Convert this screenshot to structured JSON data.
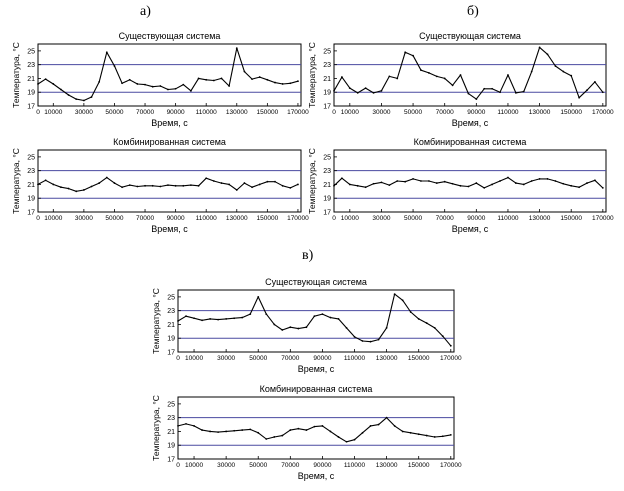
{
  "labels": {
    "a": "а)",
    "b": "б)",
    "c": "в)"
  },
  "colors": {
    "curve": "#000000",
    "limit": "#4a4aa0",
    "axis": "#000000"
  },
  "chart_data": [
    {
      "id": "a_top",
      "type": "line",
      "title": "Существующая система",
      "xlabel": "Время, с",
      "ylabel": "Температура, °С",
      "xlim": [
        0,
        172000
      ],
      "ylim": [
        17,
        26
      ],
      "xticks": [
        0,
        10000,
        30000,
        50000,
        70000,
        90000,
        110000,
        130000,
        150000,
        170000
      ],
      "yticks": [
        17,
        19,
        21,
        23,
        25
      ],
      "hlines": [
        23,
        19
      ],
      "x": [
        0,
        5000,
        10000,
        15000,
        20000,
        25000,
        30000,
        35000,
        40000,
        45000,
        50000,
        55000,
        60000,
        65000,
        70000,
        75000,
        80000,
        85000,
        90000,
        95000,
        100000,
        105000,
        110000,
        115000,
        120000,
        125000,
        130000,
        135000,
        140000,
        145000,
        150000,
        155000,
        160000,
        165000,
        170000
      ],
      "y": [
        20.2,
        20.9,
        20.2,
        19.4,
        18.6,
        18.0,
        17.8,
        18.3,
        20.5,
        24.8,
        22.8,
        20.3,
        20.8,
        20.2,
        20.1,
        19.8,
        19.9,
        19.4,
        19.5,
        20.1,
        19.2,
        21.0,
        20.8,
        20.7,
        21.0,
        19.9,
        25.4,
        22.0,
        20.9,
        21.2,
        20.8,
        20.4,
        20.2,
        20.3,
        20.6
      ]
    },
    {
      "id": "b_top",
      "type": "line",
      "title": "Существующая система",
      "xlabel": "Время, с",
      "ylabel": "Температура, °С",
      "xlim": [
        0,
        172000
      ],
      "ylim": [
        17,
        26
      ],
      "xticks": [
        0,
        10000,
        30000,
        50000,
        70000,
        90000,
        110000,
        130000,
        150000,
        170000
      ],
      "yticks": [
        17,
        19,
        21,
        23,
        25
      ],
      "hlines": [
        23,
        19
      ],
      "x": [
        0,
        5000,
        10000,
        15000,
        20000,
        25000,
        30000,
        35000,
        40000,
        45000,
        50000,
        55000,
        60000,
        65000,
        70000,
        75000,
        80000,
        85000,
        90000,
        95000,
        100000,
        105000,
        110000,
        115000,
        120000,
        125000,
        130000,
        135000,
        140000,
        145000,
        150000,
        155000,
        160000,
        165000,
        170000
      ],
      "y": [
        19.2,
        21.2,
        19.6,
        18.9,
        19.6,
        18.9,
        19.2,
        21.3,
        21.0,
        24.8,
        24.3,
        22.2,
        21.8,
        21.3,
        21.0,
        20.0,
        21.5,
        18.8,
        18.0,
        19.5,
        19.5,
        19.0,
        21.5,
        18.9,
        19.1,
        22.0,
        25.5,
        24.5,
        22.8,
        22.0,
        21.4,
        18.2,
        19.3,
        20.5,
        19.0
      ]
    },
    {
      "id": "a_bottom",
      "type": "line",
      "title": "Комбинированная система",
      "xlabel": "Время, с",
      "ylabel": "Температура, °С",
      "xlim": [
        0,
        172000
      ],
      "ylim": [
        17,
        26
      ],
      "xticks": [
        0,
        10000,
        30000,
        50000,
        70000,
        90000,
        110000,
        130000,
        150000,
        170000
      ],
      "yticks": [
        17,
        19,
        21,
        23,
        25
      ],
      "hlines": [
        23,
        19
      ],
      "x": [
        0,
        5000,
        10000,
        15000,
        20000,
        25000,
        30000,
        35000,
        40000,
        45000,
        50000,
        55000,
        60000,
        65000,
        70000,
        75000,
        80000,
        85000,
        90000,
        95000,
        100000,
        105000,
        110000,
        115000,
        120000,
        125000,
        130000,
        135000,
        140000,
        145000,
        150000,
        155000,
        160000,
        165000,
        170000
      ],
      "y": [
        21.0,
        21.6,
        21.0,
        20.6,
        20.4,
        20.0,
        20.2,
        20.7,
        21.2,
        22.0,
        21.2,
        20.6,
        20.9,
        20.7,
        20.8,
        20.8,
        20.7,
        20.9,
        20.8,
        20.8,
        20.9,
        20.8,
        21.9,
        21.5,
        21.2,
        21.0,
        20.2,
        21.2,
        20.6,
        21.0,
        21.4,
        21.4,
        20.8,
        20.5,
        21.0
      ]
    },
    {
      "id": "b_bottom",
      "type": "line",
      "title": "Комбинированная система",
      "xlabel": "Время, с",
      "ylabel": "Температура, °С",
      "xlim": [
        0,
        172000
      ],
      "ylim": [
        17,
        26
      ],
      "xticks": [
        0,
        10000,
        30000,
        50000,
        70000,
        90000,
        110000,
        130000,
        150000,
        170000
      ],
      "yticks": [
        17,
        19,
        21,
        23,
        25
      ],
      "hlines": [
        23,
        19
      ],
      "x": [
        0,
        5000,
        10000,
        15000,
        20000,
        25000,
        30000,
        35000,
        40000,
        45000,
        50000,
        55000,
        60000,
        65000,
        70000,
        75000,
        80000,
        85000,
        90000,
        95000,
        100000,
        105000,
        110000,
        115000,
        120000,
        125000,
        130000,
        135000,
        140000,
        145000,
        150000,
        155000,
        160000,
        165000,
        170000
      ],
      "y": [
        20.8,
        21.9,
        21.0,
        20.8,
        20.6,
        21.1,
        21.3,
        20.9,
        21.5,
        21.4,
        21.8,
        21.5,
        21.5,
        21.2,
        21.4,
        21.1,
        20.8,
        20.7,
        21.2,
        20.5,
        21.0,
        21.5,
        22.0,
        21.2,
        21.0,
        21.5,
        21.8,
        21.8,
        21.5,
        21.1,
        20.8,
        20.6,
        21.2,
        21.6,
        20.5
      ]
    },
    {
      "id": "c_top",
      "type": "line",
      "title": "Существующая система",
      "xlabel": "Время, с",
      "ylabel": "Температура, °С",
      "xlim": [
        0,
        172000
      ],
      "ylim": [
        17,
        26
      ],
      "xticks": [
        0,
        10000,
        30000,
        50000,
        70000,
        90000,
        110000,
        130000,
        150000,
        170000
      ],
      "yticks": [
        17,
        19,
        21,
        23,
        25
      ],
      "hlines": [
        23,
        19
      ],
      "x": [
        0,
        5000,
        10000,
        15000,
        20000,
        25000,
        30000,
        35000,
        40000,
        45000,
        50000,
        55000,
        60000,
        65000,
        70000,
        75000,
        80000,
        85000,
        90000,
        95000,
        100000,
        105000,
        110000,
        115000,
        120000,
        125000,
        130000,
        135000,
        140000,
        145000,
        150000,
        155000,
        160000,
        165000,
        170000
      ],
      "y": [
        21.5,
        22.2,
        21.9,
        21.6,
        21.8,
        21.7,
        21.8,
        21.9,
        22.0,
        22.5,
        25.0,
        22.5,
        21.0,
        20.2,
        20.6,
        20.4,
        20.6,
        22.2,
        22.5,
        22.0,
        21.8,
        20.5,
        19.2,
        18.6,
        18.5,
        18.8,
        20.5,
        25.4,
        24.5,
        22.8,
        21.8,
        21.2,
        20.5,
        19.3,
        17.9
      ]
    },
    {
      "id": "c_bottom",
      "type": "line",
      "title": "Комбинированная система",
      "xlabel": "Время, с",
      "ylabel": "Температура, °С",
      "xlim": [
        0,
        172000
      ],
      "ylim": [
        17,
        26
      ],
      "xticks": [
        0,
        10000,
        30000,
        50000,
        70000,
        90000,
        110000,
        130000,
        150000,
        170000
      ],
      "yticks": [
        17,
        19,
        21,
        23,
        25
      ],
      "hlines": [
        23,
        19
      ],
      "x": [
        0,
        5000,
        10000,
        15000,
        20000,
        25000,
        30000,
        35000,
        40000,
        45000,
        50000,
        55000,
        60000,
        65000,
        70000,
        75000,
        80000,
        85000,
        90000,
        95000,
        100000,
        105000,
        110000,
        115000,
        120000,
        125000,
        130000,
        135000,
        140000,
        145000,
        150000,
        155000,
        160000,
        165000,
        170000
      ],
      "y": [
        21.8,
        22.1,
        21.8,
        21.2,
        21.0,
        20.9,
        21.0,
        21.1,
        21.2,
        21.3,
        20.8,
        19.9,
        20.2,
        20.4,
        21.2,
        21.4,
        21.2,
        21.7,
        21.8,
        21.0,
        20.2,
        19.5,
        19.8,
        20.8,
        21.8,
        22.0,
        23.0,
        21.8,
        21.0,
        20.8,
        20.6,
        20.4,
        20.2,
        20.3,
        20.5
      ]
    }
  ]
}
